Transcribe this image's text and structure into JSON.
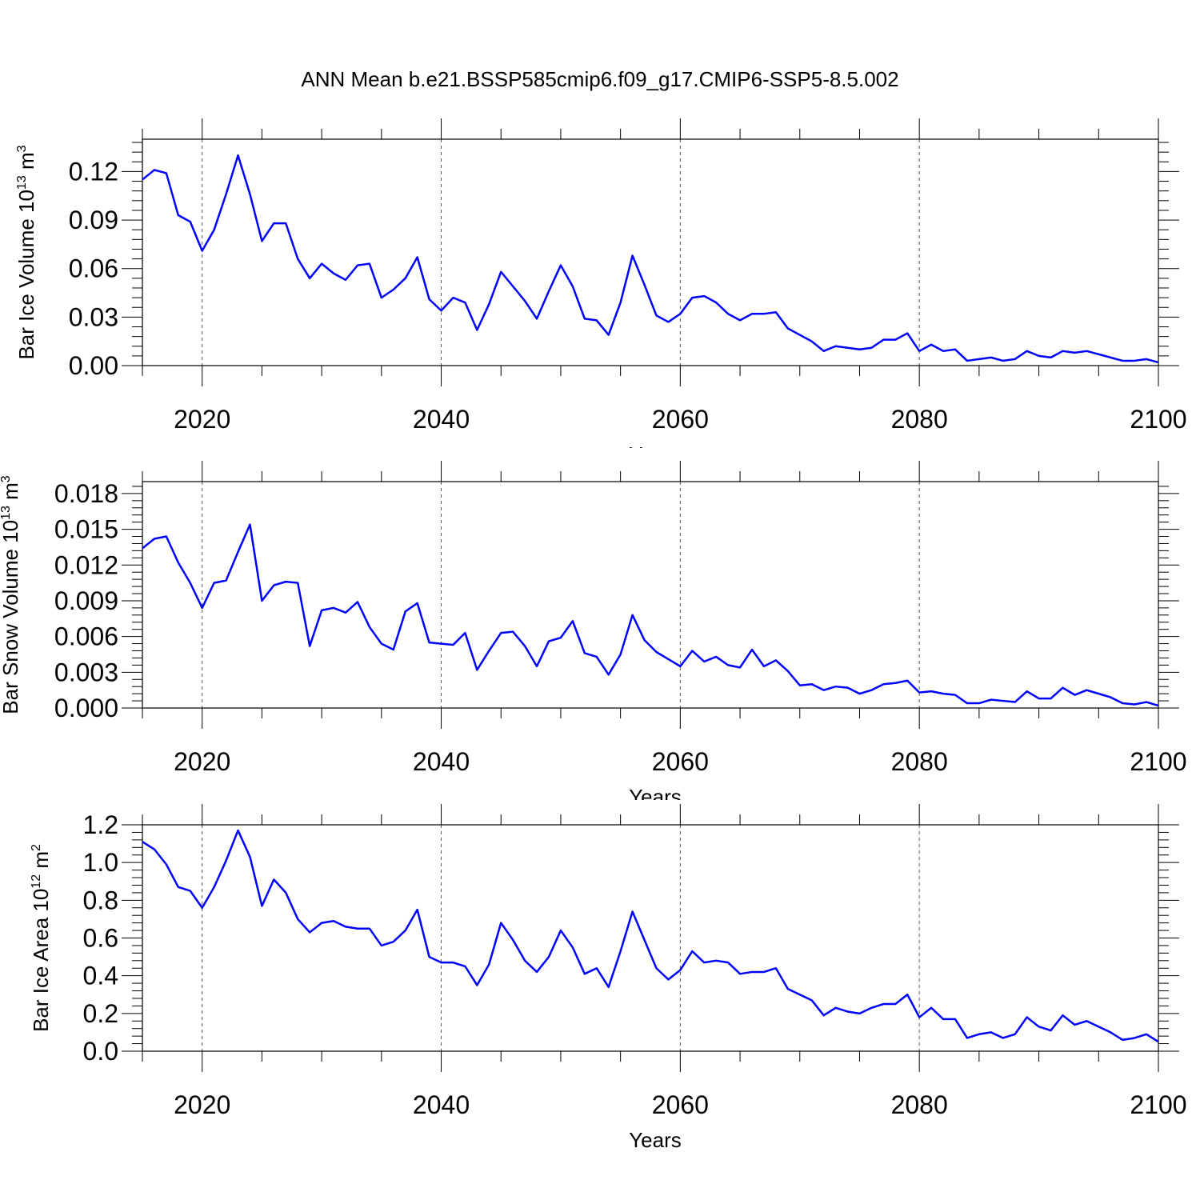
{
  "title": "ANN Mean b.e21.BSSP585cmip6.f09_g17.CMIP6-SSP5-8.5.002",
  "chart_data": [
    {
      "type": "line",
      "name": "ice-volume",
      "xlabel": "Years",
      "ylabel_main": "Bar Ice Volume 10",
      "ylabel_exp": "13",
      "ylabel_unit": " m",
      "ylabel_unit_exp": "3",
      "xlim": [
        2015,
        2100
      ],
      "ylim": [
        0,
        0.14
      ],
      "xticks": [
        2020,
        2040,
        2060,
        2080,
        2100
      ],
      "yticks": [
        0,
        0.03,
        0.06,
        0.09,
        0.12
      ],
      "ytick_labels": [
        "0.00",
        "0.03",
        "0.06",
        "0.09",
        "0.12"
      ],
      "grid": "vertical dashed at major x ticks",
      "line_color": "#0000ff",
      "x_start": 2015,
      "values": [
        0.115,
        0.121,
        0.119,
        0.093,
        0.089,
        0.071,
        0.084,
        0.106,
        0.13,
        0.106,
        0.077,
        0.088,
        0.088,
        0.066,
        0.054,
        0.063,
        0.057,
        0.053,
        0.062,
        0.063,
        0.042,
        0.047,
        0.054,
        0.067,
        0.041,
        0.034,
        0.042,
        0.039,
        0.022,
        0.038,
        0.058,
        0.049,
        0.04,
        0.029,
        0.046,
        0.062,
        0.049,
        0.029,
        0.028,
        0.019,
        0.039,
        0.068,
        0.05,
        0.031,
        0.027,
        0.032,
        0.042,
        0.043,
        0.039,
        0.032,
        0.028,
        0.032,
        0.032,
        0.033,
        0.023,
        0.019,
        0.015,
        0.009,
        0.012,
        0.011,
        0.01,
        0.011,
        0.016,
        0.016,
        0.02,
        0.009,
        0.013,
        0.009,
        0.01,
        0.003,
        0.004,
        0.005,
        0.003,
        0.004,
        0.009,
        0.006,
        0.005,
        0.009,
        0.008,
        0.009,
        0.007,
        0.005,
        0.003,
        0.003,
        0.004,
        0.002
      ]
    },
    {
      "type": "line",
      "name": "snow-volume",
      "xlabel": "Years",
      "ylabel_main": "Bar Snow Volume 10",
      "ylabel_exp": "13",
      "ylabel_unit": " m",
      "ylabel_unit_exp": "3",
      "xlim": [
        2015,
        2100
      ],
      "ylim": [
        0,
        0.019
      ],
      "xticks": [
        2020,
        2040,
        2060,
        2080,
        2100
      ],
      "yticks": [
        0,
        0.003,
        0.006,
        0.009,
        0.012,
        0.015,
        0.018
      ],
      "ytick_labels": [
        "0.000",
        "0.003",
        "0.006",
        "0.009",
        "0.012",
        "0.015",
        "0.018"
      ],
      "grid": "vertical dashed at major x ticks",
      "line_color": "#0000ff",
      "x_start": 2015,
      "values": [
        0.0134,
        0.0142,
        0.0144,
        0.0122,
        0.0105,
        0.0084,
        0.0105,
        0.0107,
        0.0131,
        0.0154,
        0.009,
        0.0103,
        0.0106,
        0.0105,
        0.0052,
        0.0082,
        0.0084,
        0.008,
        0.0089,
        0.0068,
        0.0054,
        0.0049,
        0.0081,
        0.0088,
        0.0055,
        0.0054,
        0.0053,
        0.0063,
        0.0032,
        0.0048,
        0.0063,
        0.0064,
        0.0052,
        0.0035,
        0.0056,
        0.0059,
        0.0073,
        0.0046,
        0.0043,
        0.0028,
        0.0045,
        0.0078,
        0.0057,
        0.0047,
        0.0041,
        0.0035,
        0.0048,
        0.0039,
        0.0043,
        0.0036,
        0.0034,
        0.0049,
        0.0035,
        0.004,
        0.0031,
        0.0019,
        0.002,
        0.0015,
        0.0018,
        0.0017,
        0.0012,
        0.0015,
        0.002,
        0.0021,
        0.0023,
        0.0013,
        0.0014,
        0.0012,
        0.0011,
        0.0004,
        0.0004,
        0.0007,
        0.0006,
        0.0005,
        0.0014,
        0.0008,
        0.0008,
        0.0017,
        0.0011,
        0.0015,
        0.0012,
        0.0009,
        0.0004,
        0.0003,
        0.0005,
        0.0002
      ]
    },
    {
      "type": "line",
      "name": "ice-area",
      "xlabel": "Years",
      "ylabel_main": "Bar Ice Area 10",
      "ylabel_exp": "12",
      "ylabel_unit": " m",
      "ylabel_unit_exp": "2",
      "xlim": [
        2015,
        2100
      ],
      "ylim": [
        0,
        1.2
      ],
      "xticks": [
        2020,
        2040,
        2060,
        2080,
        2100
      ],
      "yticks": [
        0,
        0.2,
        0.4,
        0.6,
        0.8,
        1.0,
        1.2
      ],
      "ytick_labels": [
        "0.0",
        "0.2",
        "0.4",
        "0.6",
        "0.8",
        "1.0",
        "1.2"
      ],
      "grid": "vertical dashed at major x ticks",
      "line_color": "#0000ff",
      "x_start": 2015,
      "values": [
        1.11,
        1.07,
        0.99,
        0.87,
        0.85,
        0.76,
        0.87,
        1.01,
        1.17,
        1.03,
        0.77,
        0.91,
        0.84,
        0.7,
        0.63,
        0.68,
        0.69,
        0.66,
        0.65,
        0.65,
        0.56,
        0.58,
        0.64,
        0.75,
        0.5,
        0.47,
        0.47,
        0.45,
        0.35,
        0.46,
        0.68,
        0.59,
        0.48,
        0.42,
        0.5,
        0.64,
        0.55,
        0.41,
        0.44,
        0.34,
        0.53,
        0.74,
        0.59,
        0.44,
        0.38,
        0.43,
        0.53,
        0.47,
        0.48,
        0.47,
        0.41,
        0.42,
        0.42,
        0.44,
        0.33,
        0.3,
        0.27,
        0.19,
        0.23,
        0.21,
        0.2,
        0.23,
        0.25,
        0.25,
        0.3,
        0.18,
        0.23,
        0.17,
        0.17,
        0.07,
        0.09,
        0.1,
        0.07,
        0.09,
        0.18,
        0.13,
        0.11,
        0.19,
        0.14,
        0.16,
        0.13,
        0.1,
        0.06,
        0.07,
        0.09,
        0.05
      ]
    }
  ]
}
